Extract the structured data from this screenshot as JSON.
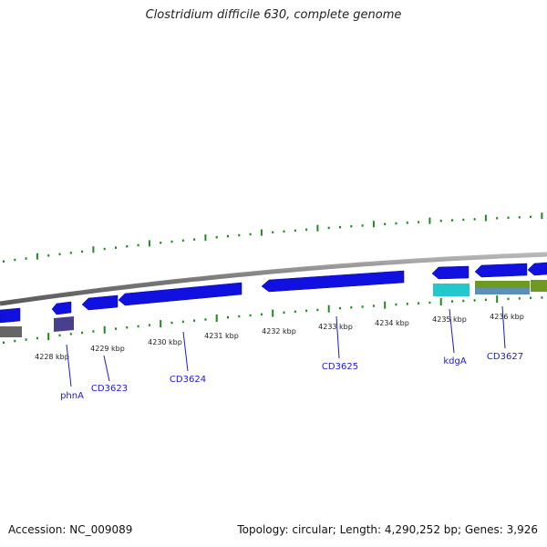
{
  "title": "Clostridium difficile 630, complete genome",
  "footer": {
    "accession": "Accession: NC_009089",
    "stats": "Topology: circular; Length: 4,290,252 bp; Genes: 3,926"
  },
  "colors": {
    "backbone": "#8a8a8a",
    "cds": "#1010e0",
    "gene_label": "#1a1ad6",
    "gc_skew": "#1d8a1d",
    "feature_cyan": "#22c8cc",
    "feature_olive": "#6e9a22",
    "feature_steel": "#5a8fb8",
    "feature_gray": "#666666",
    "feature_purple": "#4a3f8c"
  },
  "scale_labels": [
    "4228 kbp",
    "4229 kbp",
    "4230 kbp",
    "4231 kbp",
    "4232 kbp",
    "4233 kbp",
    "4234 kbp",
    "4235 kbp",
    "4236 kbp"
  ],
  "genes": [
    {
      "name": "phnA"
    },
    {
      "name": "CD3623"
    },
    {
      "name": "CD3624"
    },
    {
      "name": "CD3625"
    },
    {
      "name": "kdgA"
    },
    {
      "name": "CD3627"
    }
  ]
}
